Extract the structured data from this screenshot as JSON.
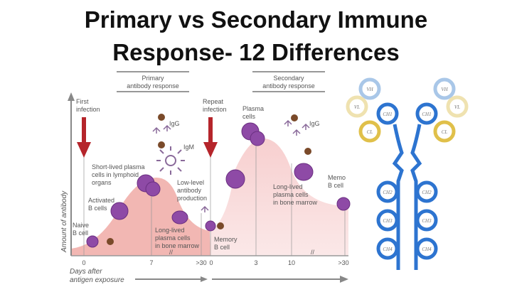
{
  "title": {
    "line1": "Primary vs Secondary Immune",
    "line2": "Response- 12 Differences"
  },
  "diagram": {
    "primary_header": [
      "Primary",
      "antibody response"
    ],
    "secondary_header": [
      "Secondary",
      "antibody response"
    ],
    "y_axis_label": "Amount of antibody",
    "x_axis_label": [
      "Days after",
      "antigen exposure"
    ],
    "primary_ticks": [
      "0",
      "7",
      ">30"
    ],
    "secondary_ticks": [
      "0",
      "3",
      "10",
      ">30"
    ],
    "annotations": {
      "first_infection": [
        "First",
        "infection"
      ],
      "repeat_infection": [
        "Repeat",
        "infection"
      ],
      "naive_b_cell": [
        "Naive",
        "B cell"
      ],
      "activated_b_cells": [
        "Activated",
        "B cells"
      ],
      "short_lived": [
        "Short-lived plasma",
        "cells in lymphoid",
        "organs"
      ],
      "igg_primary": "IgG",
      "igm": "IgM",
      "low_level": [
        "Low-level",
        "antibody",
        "production"
      ],
      "long_lived_primary": [
        "Long-lived",
        "plasma cells",
        "in bone marrow"
      ],
      "memory_b_cell": [
        "Memory",
        "B cell"
      ],
      "plasma_cells": [
        "Plasma",
        "cells"
      ],
      "igg_secondary": "IgG",
      "long_lived_secondary": [
        "Long-lived",
        "plasma cells",
        "in bone marrow"
      ],
      "memory_b_cell_right": [
        "Memo",
        "B cell"
      ]
    },
    "antibody_domains": {
      "vh": "VH",
      "vl": "VL",
      "ch1": "CH1",
      "cl": "CL",
      "ch2": "CH2",
      "ch3": "CH3",
      "ch4": "CH4"
    },
    "colors": {
      "arrow": "#b5252b",
      "curve_primary": "#f2b7b3",
      "curve_secondary": "#f9dcdc",
      "cell": "#8e4aa6",
      "heavy_chain": "#2d74d0",
      "light_chain": "#e0c04a"
    }
  }
}
